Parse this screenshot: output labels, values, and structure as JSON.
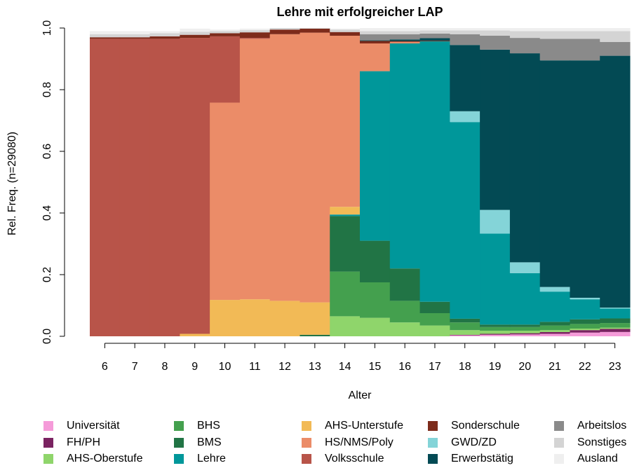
{
  "chart_data": {
    "type": "stacked_step_area",
    "title": "Lehre mit erfolgreicher LAP",
    "x_label": "Alter",
    "y_label": "Rel. Freq. (n=29080)",
    "categories": [
      6,
      7,
      8,
      9,
      10,
      11,
      12,
      13,
      14,
      15,
      16,
      17,
      18,
      19,
      20,
      21,
      22,
      23
    ],
    "ylim": [
      0,
      1
    ],
    "yticks": [
      {
        "value": 0,
        "label": "0.0"
      },
      {
        "value": 0.2,
        "label": "0.2"
      },
      {
        "value": 0.4,
        "label": "0.4"
      },
      {
        "value": 0.6,
        "label": "0.6"
      },
      {
        "value": 0.8,
        "label": "0.8"
      },
      {
        "value": 1,
        "label": "1.0"
      }
    ],
    "series": [
      {
        "name": "Universität",
        "color": "#f59bd9",
        "values": [
          0,
          0,
          0,
          0,
          0,
          0,
          0,
          0,
          0,
          0,
          0,
          0,
          0.003,
          0.005,
          0.006,
          0.008,
          0.012,
          0.014
        ]
      },
      {
        "name": "FH/PH",
        "color": "#7a2361",
        "values": [
          0,
          0,
          0,
          0,
          0,
          0,
          0,
          0,
          0,
          0,
          0,
          0,
          0.002,
          0.003,
          0.004,
          0.006,
          0.008,
          0.01
        ]
      },
      {
        "name": "AHS-Oberstufe",
        "color": "#8fd56b",
        "values": [
          0,
          0,
          0,
          0,
          0,
          0,
          0,
          0,
          0.065,
          0.06,
          0.045,
          0.035,
          0.015,
          0.01,
          0.008,
          0.006,
          0.005,
          0.004
        ]
      },
      {
        "name": "BHS",
        "color": "#44a04e",
        "values": [
          0,
          0,
          0,
          0,
          0,
          0,
          0,
          0,
          0.145,
          0.115,
          0.07,
          0.04,
          0.025,
          0.012,
          0.012,
          0.015,
          0.015,
          0.015
        ]
      },
      {
        "name": "BMS",
        "color": "#217445",
        "values": [
          0,
          0,
          0,
          0,
          0,
          0,
          0,
          0.005,
          0.18,
          0.135,
          0.105,
          0.037,
          0.012,
          0.008,
          0.008,
          0.012,
          0.015,
          0.015
        ]
      },
      {
        "name": "Lehre",
        "color": "#00979a",
        "values": [
          0,
          0,
          0,
          0,
          0,
          0,
          0,
          0,
          0.005,
          0.55,
          0.73,
          0.845,
          0.638,
          0.295,
          0.167,
          0.098,
          0.065,
          0.032
        ]
      },
      {
        "name": "AHS-Unterstufe",
        "color": "#f2ba56",
        "values": [
          0,
          0,
          0,
          0.008,
          0.118,
          0.12,
          0.115,
          0.105,
          0.025,
          0,
          0,
          0,
          0,
          0,
          0,
          0,
          0,
          0
        ]
      },
      {
        "name": "HS/NMS/Poly",
        "color": "#eb8c68",
        "values": [
          0,
          0,
          0,
          0,
          0.64,
          0.845,
          0.865,
          0.875,
          0.555,
          0.09,
          0.005,
          0,
          0,
          0,
          0,
          0,
          0,
          0
        ]
      },
      {
        "name": "Volksschule",
        "color": "#b85449",
        "values": [
          0.965,
          0.965,
          0.965,
          0.96,
          0.215,
          0.003,
          0,
          0,
          0,
          0,
          0,
          0,
          0,
          0,
          0,
          0,
          0,
          0
        ]
      },
      {
        "name": "Sonderschule",
        "color": "#7d2b1b",
        "values": [
          0.005,
          0.005,
          0.008,
          0.01,
          0.01,
          0.018,
          0.015,
          0.013,
          0.012,
          0.008,
          0.003,
          0.002,
          0,
          0,
          0,
          0,
          0,
          0
        ]
      },
      {
        "name": "GWD/ZD",
        "color": "#84d4d8",
        "values": [
          0,
          0,
          0,
          0,
          0,
          0,
          0,
          0,
          0,
          0,
          0,
          0,
          0.035,
          0.077,
          0.035,
          0.015,
          0.005,
          0.003
        ]
      },
      {
        "name": "Erwerbstätig",
        "color": "#034a54",
        "values": [
          0,
          0,
          0,
          0,
          0,
          0,
          0,
          0,
          0,
          0.002,
          0.005,
          0.008,
          0.215,
          0.52,
          0.678,
          0.735,
          0.77,
          0.817
        ]
      },
      {
        "name": "Arbeitslos",
        "color": "#8a8a8a",
        "values": [
          0,
          0,
          0,
          0,
          0,
          0,
          0,
          0,
          0,
          0.02,
          0.017,
          0.015,
          0.035,
          0.045,
          0.05,
          0.07,
          0.07,
          0.045
        ]
      },
      {
        "name": "Sonstiges",
        "color": "#d4d4d4",
        "values": [
          0.01,
          0.01,
          0.01,
          0.01,
          0.007,
          0.007,
          0.005,
          0.002,
          0.008,
          0.01,
          0.01,
          0.01,
          0.012,
          0.017,
          0.022,
          0.025,
          0.025,
          0.035
        ]
      },
      {
        "name": "Ausland",
        "color": "#efefef",
        "values": [
          0.01,
          0.01,
          0.007,
          0.01,
          0.005,
          0.005,
          0,
          0,
          0.003,
          0.01,
          0.01,
          0.008,
          0.008,
          0.008,
          0.01,
          0.01,
          0.01,
          0.01
        ]
      }
    ]
  }
}
